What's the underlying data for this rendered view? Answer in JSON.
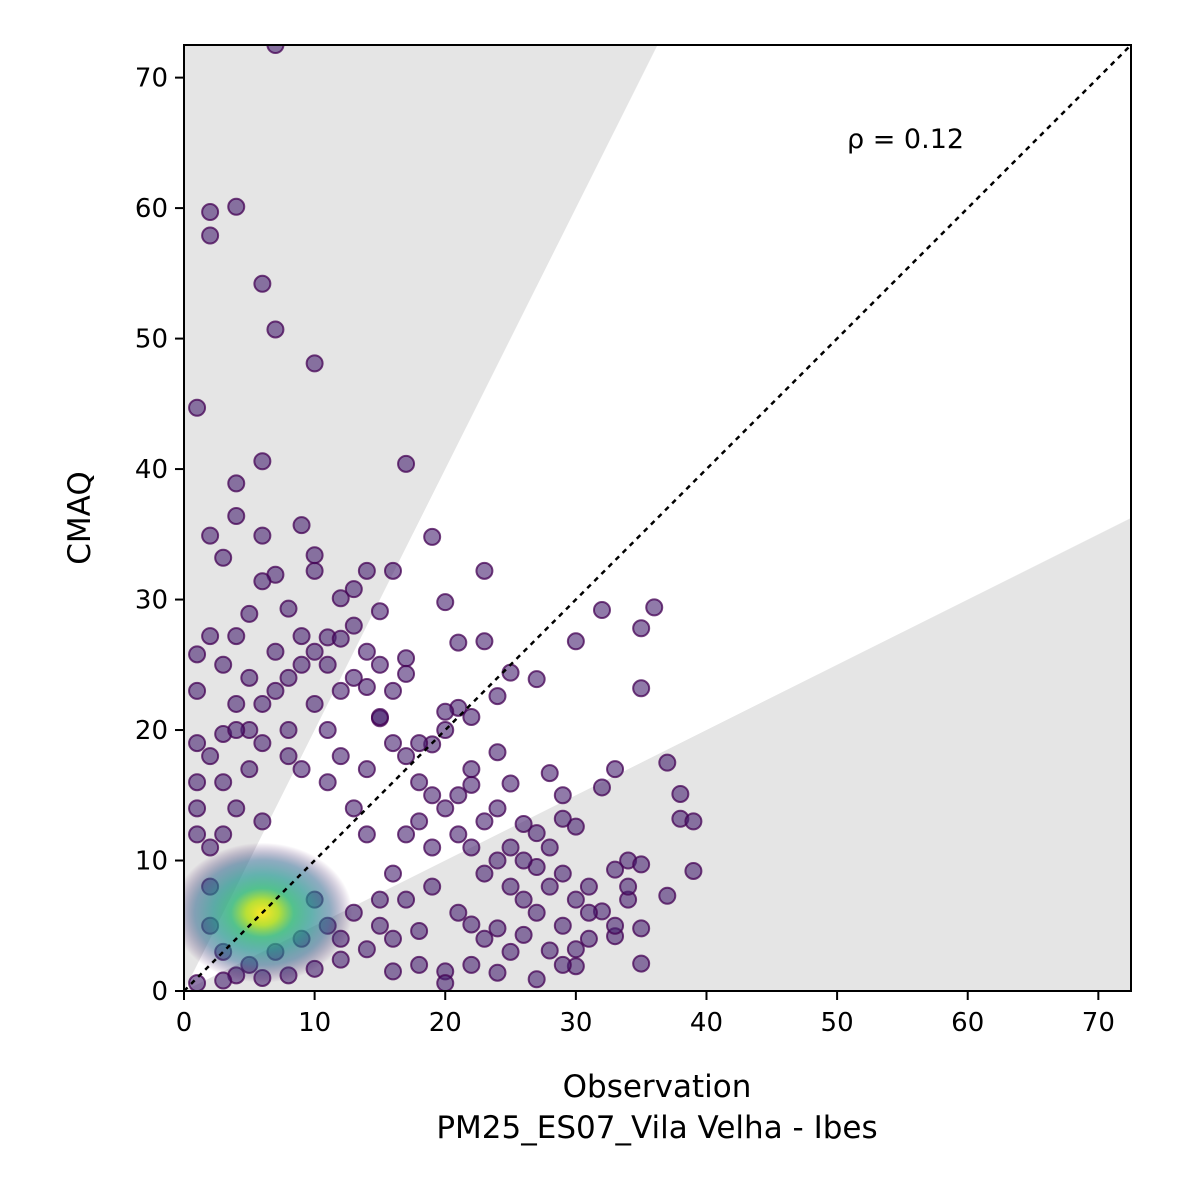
{
  "chart_data": {
    "type": "scatter",
    "xlabel": "Observation",
    "xlabel2": "PM25_ES07_Vila Velha - Ibes",
    "ylabel": "CMAQ",
    "xlim": [
      0,
      72.5
    ],
    "ylim": [
      0,
      72.5
    ],
    "x_ticks": [
      0,
      10,
      20,
      30,
      40,
      50,
      60,
      70
    ],
    "y_ticks": [
      0,
      10,
      20,
      30,
      40,
      50,
      60,
      70
    ],
    "annotation": "ρ = 0.12",
    "identity_line": true,
    "shaded_band": "factor of 2",
    "color_scale": "viridis density",
    "grid": false,
    "core_cloud_center": [
      6,
      6
    ],
    "points": [
      [
        7,
        72.5
      ],
      [
        2,
        59.7
      ],
      [
        4,
        60.1
      ],
      [
        2,
        57.9
      ],
      [
        6,
        54.2
      ],
      [
        7,
        50.7
      ],
      [
        10,
        48.1
      ],
      [
        1,
        44.7
      ],
      [
        6,
        40.6
      ],
      [
        17,
        40.4
      ],
      [
        4,
        38.9
      ],
      [
        4,
        36.4
      ],
      [
        9,
        35.7
      ],
      [
        2,
        34.9
      ],
      [
        6,
        34.9
      ],
      [
        19,
        34.8
      ],
      [
        3,
        33.2
      ],
      [
        10,
        33.4
      ],
      [
        7,
        31.9
      ],
      [
        10,
        32.2
      ],
      [
        6,
        31.4
      ],
      [
        14,
        32.2
      ],
      [
        16,
        32.2
      ],
      [
        23,
        32.2
      ],
      [
        13,
        30.8
      ],
      [
        12,
        30.1
      ],
      [
        15,
        29.1
      ],
      [
        8,
        29.3
      ],
      [
        5,
        28.9
      ],
      [
        20,
        29.8
      ],
      [
        32,
        29.2
      ],
      [
        36,
        29.4
      ],
      [
        35,
        27.8
      ],
      [
        30,
        26.8
      ],
      [
        21,
        26.7
      ],
      [
        23,
        26.8
      ],
      [
        2,
        27.2
      ],
      [
        4,
        27.2
      ],
      [
        9,
        27.2
      ],
      [
        11,
        27.1
      ],
      [
        1,
        25.8
      ],
      [
        17,
        25.5
      ],
      [
        17,
        24.3
      ],
      [
        25,
        24.4
      ],
      [
        27,
        23.9
      ],
      [
        35,
        23.2
      ],
      [
        1,
        23.0
      ],
      [
        24,
        22.6
      ],
      [
        14,
        23.3
      ],
      [
        21,
        21.7
      ],
      [
        20,
        21.4
      ],
      [
        22,
        21.0
      ],
      [
        15,
        20.9
      ],
      [
        3,
        19.7
      ],
      [
        1,
        19.0
      ],
      [
        19,
        18.9
      ],
      [
        24,
        18.3
      ],
      [
        37,
        17.5
      ],
      [
        33,
        17.0
      ],
      [
        28,
        16.7
      ],
      [
        22,
        15.8
      ],
      [
        25,
        15.9
      ],
      [
        29,
        15.0
      ],
      [
        32,
        15.6
      ],
      [
        38,
        15.1
      ],
      [
        38,
        13.2
      ],
      [
        39,
        13.0
      ],
      [
        30,
        12.6
      ],
      [
        26,
        12.8
      ],
      [
        29,
        13.2
      ],
      [
        27,
        12.1
      ],
      [
        34,
        10.0
      ],
      [
        35,
        9.7
      ],
      [
        33,
        9.3
      ],
      [
        39,
        9.2
      ],
      [
        37,
        7.3
      ],
      [
        34,
        7.0
      ],
      [
        32,
        6.1
      ],
      [
        35,
        4.8
      ],
      [
        33,
        4.2
      ],
      [
        35,
        2.1
      ],
      [
        30,
        1.9
      ],
      [
        27,
        0.9
      ],
      [
        24,
        1.4
      ],
      [
        20,
        1.5
      ],
      [
        20,
        0.6
      ],
      [
        30,
        3.2
      ],
      [
        28,
        3.1
      ],
      [
        26,
        4.3
      ],
      [
        24,
        4.8
      ],
      [
        22,
        5.1
      ],
      [
        18,
        4.6
      ],
      [
        16,
        4.0
      ],
      [
        14,
        3.2
      ],
      [
        12,
        2.4
      ],
      [
        10,
        1.7
      ],
      [
        8,
        1.2
      ],
      [
        6,
        1.0
      ],
      [
        4,
        1.2
      ],
      [
        3,
        0.8
      ],
      [
        1,
        0.6
      ],
      [
        1,
        12.0
      ],
      [
        1,
        14.0
      ],
      [
        2,
        11.0
      ],
      [
        3,
        16.0
      ],
      [
        4,
        22.0
      ],
      [
        5,
        24.0
      ],
      [
        7,
        23.0
      ],
      [
        8,
        20.0
      ],
      [
        9,
        25.0
      ],
      [
        10,
        22.0
      ],
      [
        11,
        20.0
      ],
      [
        12,
        23.0
      ],
      [
        13,
        24.0
      ],
      [
        12,
        18.0
      ],
      [
        14,
        17.0
      ],
      [
        15,
        21.0
      ],
      [
        16,
        19.0
      ],
      [
        17,
        18.0
      ],
      [
        18,
        16.0
      ],
      [
        18,
        13.0
      ],
      [
        19,
        15.0
      ],
      [
        20,
        14.0
      ],
      [
        21,
        12.0
      ],
      [
        22,
        11.0
      ],
      [
        23,
        9.0
      ],
      [
        24,
        10.0
      ],
      [
        25,
        8.0
      ],
      [
        26,
        7.0
      ],
      [
        27,
        6.0
      ],
      [
        28,
        8.0
      ],
      [
        29,
        5.0
      ],
      [
        30,
        7.0
      ],
      [
        31,
        8.0
      ],
      [
        25,
        11.0
      ],
      [
        27,
        9.5
      ],
      [
        23,
        13.0
      ],
      [
        21,
        15.0
      ],
      [
        19,
        11.0
      ],
      [
        17,
        12.0
      ],
      [
        16,
        9.0
      ],
      [
        15,
        7.0
      ],
      [
        14,
        12.0
      ],
      [
        13,
        14.0
      ],
      [
        11,
        16.0
      ],
      [
        9,
        17.0
      ],
      [
        8,
        18.0
      ],
      [
        6,
        19.0
      ],
      [
        5,
        17.0
      ],
      [
        4,
        14.0
      ],
      [
        3,
        12.0
      ],
      [
        2,
        8.0
      ],
      [
        2,
        5.0
      ],
      [
        3,
        3.0
      ],
      [
        5,
        2.0
      ],
      [
        7,
        3.0
      ],
      [
        9,
        4.0
      ],
      [
        11,
        5.0
      ],
      [
        13,
        6.0
      ],
      [
        15,
        5.0
      ],
      [
        17,
        7.0
      ],
      [
        19,
        8.0
      ],
      [
        21,
        6.0
      ],
      [
        23,
        4.0
      ],
      [
        25,
        3.0
      ],
      [
        22,
        2.0
      ],
      [
        18,
        2.0
      ],
      [
        16,
        1.5
      ],
      [
        12,
        4.0
      ],
      [
        10,
        7.0
      ],
      [
        6,
        13.0
      ],
      [
        5,
        20.0
      ],
      [
        7,
        26.0
      ],
      [
        3,
        25.0
      ],
      [
        10,
        26.0
      ],
      [
        12,
        27.0
      ],
      [
        13,
        28.0
      ],
      [
        14,
        26.0
      ],
      [
        11,
        25.0
      ],
      [
        8,
        24.0
      ],
      [
        6,
        22.0
      ],
      [
        4,
        20.0
      ],
      [
        2,
        18.0
      ],
      [
        1,
        16.0
      ],
      [
        20,
        20.0
      ],
      [
        18,
        19.0
      ],
      [
        16,
        23.0
      ],
      [
        15,
        25.0
      ],
      [
        22,
        17.0
      ],
      [
        24,
        14.0
      ],
      [
        26,
        10.0
      ],
      [
        28,
        11.0
      ],
      [
        29,
        9.0
      ],
      [
        31,
        6.0
      ],
      [
        33,
        5.0
      ],
      [
        34,
        8.0
      ],
      [
        31,
        4.0
      ],
      [
        29,
        2.0
      ]
    ]
  }
}
